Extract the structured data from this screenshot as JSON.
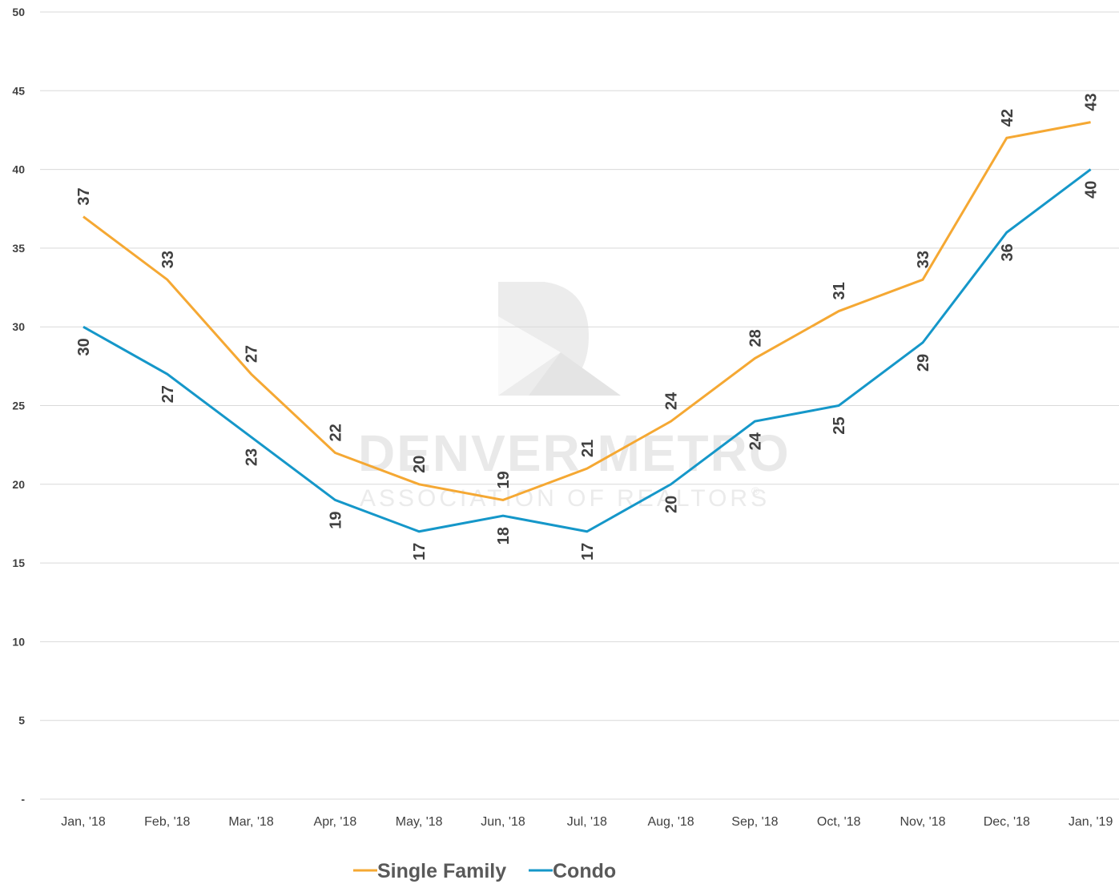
{
  "watermark": {
    "title": "DENVER METRO",
    "subtitle": "ASSOCIATION OF REALTORS",
    "mark": "®"
  },
  "colors": {
    "single_family": "#F5A833",
    "condo": "#1597C9",
    "grid": "#d9d9d9",
    "text": "#404040"
  },
  "chart_data": {
    "type": "line",
    "categories": [
      "Jan, '18",
      "Feb, '18",
      "Mar, '18",
      "Apr, '18",
      "May, '18",
      "Jun, '18",
      "Jul, '18",
      "Aug, '18",
      "Sep, '18",
      "Oct, '18",
      "Nov, '18",
      "Dec, '18",
      "Jan, '19"
    ],
    "series": [
      {
        "name": "Single Family",
        "color": "#F5A833",
        "values": [
          37,
          33,
          27,
          22,
          20,
          19,
          21,
          24,
          28,
          31,
          33,
          42,
          43
        ]
      },
      {
        "name": "Condo",
        "color": "#1597C9",
        "values": [
          30,
          27,
          23,
          19,
          17,
          18,
          17,
          20,
          24,
          25,
          29,
          36,
          40
        ]
      }
    ],
    "ylim": [
      0,
      50
    ],
    "yticks": [
      "-",
      "5",
      "10",
      "15",
      "20",
      "25",
      "30",
      "35",
      "40",
      "45",
      "50"
    ],
    "grid": true,
    "legend": "bottom",
    "data_labels": true
  }
}
